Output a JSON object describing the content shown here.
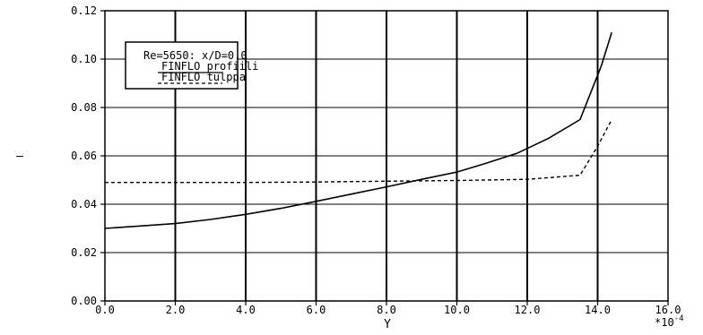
{
  "chart_data": {
    "type": "line",
    "title": "",
    "xlabel": "Y",
    "ylabel": "—",
    "x_scale_label": "*10",
    "x_scale_exponent": "-4",
    "xlim": [
      0,
      16
    ],
    "ylim": [
      0,
      0.12
    ],
    "xticks": [
      "0.0",
      "2.0",
      "4.0",
      "6.0",
      "8.0",
      "10.0",
      "12.0",
      "14.0",
      "16.0"
    ],
    "yticks": [
      "0.00",
      "0.02",
      "0.04",
      "0.06",
      "0.08",
      "0.10",
      "0.12"
    ],
    "grid": true,
    "legend": {
      "placement": "top-left",
      "header": "Re=5650: x/D=0.0"
    },
    "series": [
      {
        "name": "FINFLO profiili",
        "style": "solid",
        "color": "#000000",
        "x": [
          0.0,
          1.0,
          2.0,
          3.0,
          4.0,
          5.0,
          6.0,
          7.0,
          8.0,
          9.0,
          10.0,
          10.8,
          11.7,
          12.6,
          13.5,
          14.1,
          14.4
        ],
        "y": [
          0.03,
          0.031,
          0.032,
          0.0337,
          0.0358,
          0.0383,
          0.0412,
          0.0442,
          0.0472,
          0.0503,
          0.0533,
          0.0568,
          0.061,
          0.0672,
          0.075,
          0.097,
          0.111
        ]
      },
      {
        "name": "FINFLO tulppa",
        "style": "dashed",
        "color": "#000000",
        "x": [
          0.0,
          2.0,
          4.0,
          6.0,
          8.0,
          10.0,
          12.0,
          13.5,
          14.0,
          14.4
        ],
        "y": [
          0.049,
          0.049,
          0.049,
          0.0492,
          0.0495,
          0.0498,
          0.0503,
          0.052,
          0.064,
          0.075
        ]
      }
    ]
  }
}
